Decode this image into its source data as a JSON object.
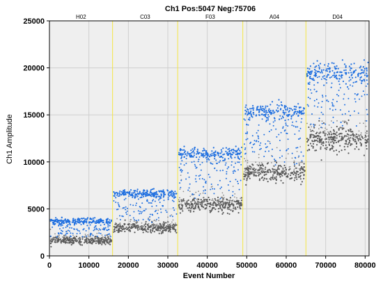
{
  "chart_data": {
    "type": "scatter",
    "title": "Ch1 Pos:5047 Neg:75706",
    "xlabel": "Event Number",
    "ylabel": "Ch1 Amplitude",
    "xlim": [
      0,
      81000
    ],
    "ylim": [
      0,
      25000
    ],
    "x_ticks": [
      "0",
      "10000",
      "20000",
      "30000",
      "40000",
      "50000",
      "60000",
      "70000",
      "80000"
    ],
    "y_ticks": [
      "0",
      "5000",
      "10000",
      "15000",
      "20000",
      "25000"
    ],
    "grid": true,
    "colors": {
      "positive": "#1f6fe0",
      "negative": "#5a5a5a",
      "divider": "#f5e642",
      "background": "#efefef"
    },
    "wells": [
      {
        "name": "H02",
        "x_start": 0,
        "x_end": 16000,
        "negative_level": 1650,
        "positive_level": 3700,
        "scatter_low": 2000,
        "scatter_high": 4400
      },
      {
        "name": "C03",
        "x_start": 16000,
        "x_end": 32500,
        "negative_level": 3000,
        "positive_level": 6600,
        "scatter_low": 3500,
        "scatter_high": 7100
      },
      {
        "name": "F03",
        "x_start": 32500,
        "x_end": 49000,
        "negative_level": 5400,
        "positive_level": 10900,
        "scatter_low": 6000,
        "scatter_high": 11300
      },
      {
        "name": "A04",
        "x_start": 49000,
        "x_end": 65000,
        "negative_level": 8800,
        "positive_level": 15300,
        "scatter_low": 9500,
        "scatter_high": 15700
      },
      {
        "name": "D04",
        "x_start": 65000,
        "x_end": 81000,
        "negative_level": 12500,
        "positive_level": 19500,
        "scatter_low": 13500,
        "scatter_high": 20300
      }
    ]
  }
}
